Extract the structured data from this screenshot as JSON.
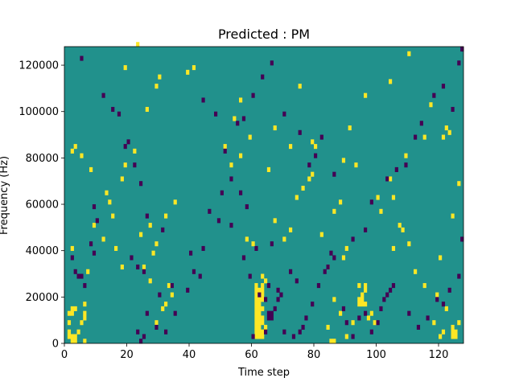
{
  "chart_data": {
    "type": "heatmap",
    "title": "Predicted : PM",
    "xlabel": "Time step",
    "ylabel": "Frequency (Hz)",
    "xlim": [
      0,
      128
    ],
    "ylim": [
      0,
      128000
    ],
    "xticks": [
      0,
      20,
      40,
      60,
      80,
      100,
      120
    ],
    "yticks": [
      0,
      20000,
      40000,
      60000,
      80000,
      100000,
      120000
    ],
    "xtick_labels": [
      "0",
      "20",
      "40",
      "60",
      "80",
      "100",
      "120"
    ],
    "ytick_labels": [
      "0",
      "20000",
      "40000",
      "60000",
      "80000",
      "100000",
      "120000"
    ],
    "n_cols": 128,
    "n_rows": 64,
    "row_height_hz": 2000,
    "colormap": "viridis",
    "levels": {
      "low": -1,
      "mid": 0,
      "high": 1
    },
    "colors": {
      "low": "#440154",
      "mid": "#21918c",
      "high": "#fde725"
    },
    "grid": false,
    "background_value": 0,
    "cells_high": [
      [
        2,
        0.5
      ],
      [
        3,
        0.5
      ],
      [
        6,
        0.5
      ],
      [
        1,
        1
      ],
      [
        2,
        1
      ],
      [
        3,
        1
      ],
      [
        1,
        2
      ],
      [
        4,
        2
      ],
      [
        1,
        4
      ],
      [
        5,
        4
      ],
      [
        6,
        5
      ],
      [
        1,
        6
      ],
      [
        2,
        6
      ],
      [
        6,
        6
      ],
      [
        2,
        7
      ],
      [
        3,
        7
      ],
      [
        6,
        8
      ],
      [
        2,
        20
      ],
      [
        7,
        15
      ],
      [
        9,
        25
      ],
      [
        3,
        42
      ],
      [
        2,
        41
      ],
      [
        5,
        40
      ],
      [
        8,
        37
      ],
      [
        61,
        1
      ],
      [
        62,
        1
      ],
      [
        63,
        1
      ],
      [
        61,
        2
      ],
      [
        62,
        2
      ],
      [
        63,
        2
      ],
      [
        61,
        3
      ],
      [
        62,
        3
      ],
      [
        64,
        3
      ],
      [
        61,
        4
      ],
      [
        62,
        4
      ],
      [
        63,
        4
      ],
      [
        61,
        5
      ],
      [
        62,
        5
      ],
      [
        63,
        5
      ],
      [
        61,
        6
      ],
      [
        62,
        6
      ],
      [
        61,
        7
      ],
      [
        62,
        7
      ],
      [
        63,
        7
      ],
      [
        61,
        8
      ],
      [
        62,
        8
      ],
      [
        61,
        9
      ],
      [
        62,
        9
      ],
      [
        63,
        9
      ],
      [
        61,
        10
      ],
      [
        62,
        10
      ],
      [
        63,
        10
      ],
      [
        61,
        11
      ],
      [
        62,
        11
      ],
      [
        63,
        11
      ],
      [
        61,
        12
      ],
      [
        63,
        12
      ],
      [
        64,
        13
      ],
      [
        63,
        14
      ],
      [
        94,
        8
      ],
      [
        95,
        8
      ],
      [
        96,
        8
      ],
      [
        94,
        9
      ],
      [
        95,
        9
      ],
      [
        95,
        10
      ],
      [
        96,
        11
      ],
      [
        94,
        12
      ],
      [
        96,
        12
      ],
      [
        98,
        6
      ],
      [
        97,
        5
      ],
      [
        99,
        4
      ],
      [
        85,
        0.5
      ],
      [
        86,
        0.5
      ],
      [
        84,
        3
      ],
      [
        90,
        1
      ],
      [
        92,
        4
      ],
      [
        88,
        6
      ],
      [
        86,
        9
      ],
      [
        84,
        16
      ],
      [
        89,
        18
      ],
      [
        90,
        20
      ],
      [
        120,
        1
      ],
      [
        121,
        2
      ],
      [
        124,
        1
      ],
      [
        125,
        1
      ],
      [
        124,
        2
      ],
      [
        125,
        2
      ],
      [
        124,
        3
      ],
      [
        126,
        4
      ],
      [
        122,
        7
      ],
      [
        118,
        4
      ],
      [
        29,
        4
      ],
      [
        31,
        7
      ],
      [
        32,
        8
      ],
      [
        34,
        10
      ],
      [
        33,
        12
      ],
      [
        27,
        13
      ],
      [
        28,
        19
      ],
      [
        29,
        21
      ],
      [
        24,
        23
      ],
      [
        27,
        25
      ],
      [
        32,
        27
      ],
      [
        35,
        30
      ],
      [
        16,
        20
      ],
      [
        18,
        16
      ],
      [
        25,
        16
      ],
      [
        12,
        22
      ],
      [
        15,
        27
      ],
      [
        14,
        30
      ],
      [
        13,
        32
      ],
      [
        18,
        35
      ],
      [
        19,
        38
      ],
      [
        22,
        41
      ],
      [
        26,
        50
      ],
      [
        29,
        55
      ],
      [
        30,
        57
      ],
      [
        19,
        59
      ],
      [
        23,
        64
      ],
      [
        39,
        58
      ],
      [
        41,
        59
      ],
      [
        51,
        42
      ],
      [
        54,
        48
      ],
      [
        56,
        52
      ],
      [
        53,
        38
      ],
      [
        58,
        22
      ],
      [
        60,
        21
      ],
      [
        67,
        26
      ],
      [
        70,
        22
      ],
      [
        72,
        24
      ],
      [
        74,
        31
      ],
      [
        76,
        33
      ],
      [
        78,
        35
      ],
      [
        79,
        36
      ],
      [
        82,
        23
      ],
      [
        86,
        28
      ],
      [
        88,
        30
      ],
      [
        101,
        28
      ],
      [
        105,
        31
      ],
      [
        107,
        25
      ],
      [
        108,
        24
      ],
      [
        110,
        21
      ],
      [
        112,
        15
      ],
      [
        115,
        12
      ],
      [
        119,
        10
      ],
      [
        120,
        18
      ],
      [
        124,
        27
      ],
      [
        126,
        34
      ],
      [
        100,
        31
      ],
      [
        105,
        20
      ],
      [
        104,
        35
      ],
      [
        109,
        40
      ],
      [
        115,
        44
      ],
      [
        121,
        44
      ],
      [
        122,
        46
      ],
      [
        123,
        45
      ],
      [
        117,
        51
      ],
      [
        110,
        62
      ],
      [
        104,
        56
      ],
      [
        56,
        40
      ],
      [
        59,
        44
      ],
      [
        65,
        37
      ],
      [
        67,
        46
      ],
      [
        72,
        42
      ],
      [
        75,
        55
      ],
      [
        79,
        43
      ],
      [
        80,
        42
      ],
      [
        89,
        39
      ],
      [
        93,
        38
      ],
      [
        91,
        46
      ],
      [
        96,
        53
      ]
    ],
    "cells_low": [
      [
        3,
        15
      ],
      [
        4,
        14
      ],
      [
        5,
        14
      ],
      [
        6,
        12
      ],
      [
        2,
        18
      ],
      [
        9,
        19
      ],
      [
        9,
        29
      ],
      [
        8,
        21
      ],
      [
        10,
        26
      ],
      [
        5,
        61
      ],
      [
        24,
        0.5
      ],
      [
        23,
        2
      ],
      [
        25,
        1
      ],
      [
        29,
        3
      ],
      [
        32,
        2
      ],
      [
        26,
        6
      ],
      [
        30,
        10
      ],
      [
        34,
        12
      ],
      [
        31,
        24
      ],
      [
        21,
        18
      ],
      [
        23,
        16
      ],
      [
        25,
        15
      ],
      [
        60,
        1
      ],
      [
        64,
        2
      ],
      [
        65,
        5
      ],
      [
        66,
        5
      ],
      [
        65,
        6
      ],
      [
        66,
        6
      ],
      [
        67,
        7
      ],
      [
        68,
        9
      ],
      [
        69,
        10
      ],
      [
        68,
        11
      ],
      [
        65,
        12
      ],
      [
        70,
        2
      ],
      [
        73,
        1
      ],
      [
        75,
        2
      ],
      [
        76,
        3
      ],
      [
        77,
        5
      ],
      [
        79,
        8
      ],
      [
        81,
        12
      ],
      [
        83,
        15
      ],
      [
        84,
        16
      ],
      [
        85,
        19
      ],
      [
        86,
        18
      ],
      [
        89,
        7
      ],
      [
        90,
        4
      ],
      [
        92,
        1
      ],
      [
        94,
        5
      ],
      [
        96,
        6
      ],
      [
        98,
        2
      ],
      [
        100,
        4
      ],
      [
        101,
        7
      ],
      [
        102,
        9
      ],
      [
        103,
        10
      ],
      [
        104,
        11
      ],
      [
        105,
        12
      ],
      [
        110,
        6
      ],
      [
        113,
        3
      ],
      [
        116,
        5
      ],
      [
        119,
        9
      ],
      [
        121,
        8
      ],
      [
        123,
        11
      ],
      [
        126,
        14
      ],
      [
        127,
        22
      ],
      [
        12,
        53
      ],
      [
        15,
        50
      ],
      [
        17,
        49
      ],
      [
        19,
        42
      ],
      [
        20,
        43
      ],
      [
        22,
        38
      ],
      [
        24,
        34
      ],
      [
        26,
        27
      ],
      [
        40,
        19
      ],
      [
        43,
        14
      ],
      [
        49,
        26
      ],
      [
        53,
        35
      ],
      [
        56,
        32
      ],
      [
        58,
        29
      ],
      [
        61,
        20
      ],
      [
        66,
        21
      ],
      [
        72,
        15
      ],
      [
        74,
        13
      ],
      [
        80,
        40
      ],
      [
        82,
        44
      ],
      [
        86,
        36
      ],
      [
        92,
        22
      ],
      [
        96,
        24
      ],
      [
        98,
        30
      ],
      [
        103,
        35
      ],
      [
        106,
        37
      ],
      [
        109,
        38
      ],
      [
        112,
        44
      ],
      [
        114,
        47
      ],
      [
        118,
        53
      ],
      [
        121,
        55
      ],
      [
        124,
        50
      ],
      [
        126,
        60
      ],
      [
        127,
        63
      ],
      [
        44,
        52
      ],
      [
        48,
        49
      ],
      [
        51,
        41
      ],
      [
        55,
        47
      ],
      [
        57,
        48
      ],
      [
        60,
        53
      ],
      [
        63,
        57
      ],
      [
        66,
        60
      ],
      [
        70,
        49
      ],
      [
        75,
        45
      ],
      [
        78,
        38
      ],
      [
        35,
        6
      ],
      [
        39,
        11
      ],
      [
        41,
        15
      ],
      [
        44,
        20
      ],
      [
        46,
        28
      ],
      [
        50,
        32
      ],
      [
        53,
        25
      ],
      [
        57,
        18
      ],
      [
        59,
        14
      ],
      [
        62,
        10
      ],
      [
        64,
        9
      ]
    ]
  }
}
